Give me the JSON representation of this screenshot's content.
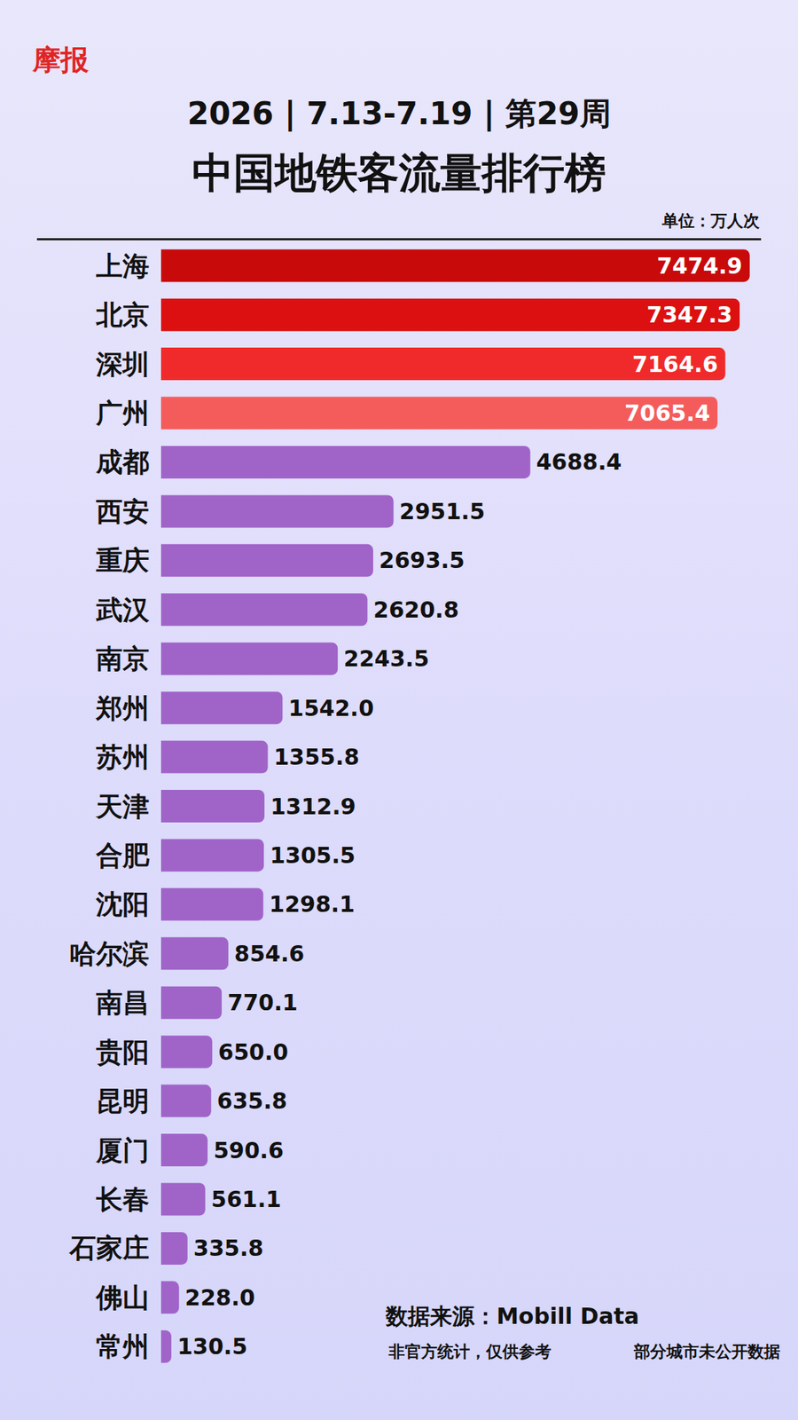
{
  "chart_data": {
    "type": "bar",
    "orientation": "horizontal",
    "brand": "摩报",
    "subtitle": "2026 | 7.13-7.19 | 第29周",
    "title": "中国地铁客流量排行榜",
    "unit": "单位：万人次",
    "categories": [
      "上海",
      "北京",
      "深圳",
      "广州",
      "成都",
      "西安",
      "重庆",
      "武汉",
      "南京",
      "郑州",
      "苏州",
      "天津",
      "合肥",
      "沈阳",
      "哈尔滨",
      "南昌",
      "贵阳",
      "昆明",
      "厦门",
      "长春",
      "石家庄",
      "佛山",
      "常州"
    ],
    "values": [
      7474.9,
      7347.3,
      7164.6,
      7065.4,
      4688.4,
      2951.5,
      2693.5,
      2620.8,
      2243.5,
      1542.0,
      1355.8,
      1312.9,
      1305.5,
      1298.1,
      854.6,
      770.1,
      650.0,
      635.8,
      590.6,
      561.1,
      335.8,
      228.0,
      130.5
    ],
    "value_labels": [
      "7474.9",
      "7347.3",
      "7164.6",
      "7065.4",
      "4688.4",
      "2951.5",
      "2693.5",
      "2620.8",
      "2243.5",
      "1542.0",
      "1355.8",
      "1312.9",
      "1305.5",
      "1298.1",
      "854.6",
      "770.1",
      "650.0",
      "635.8",
      "590.6",
      "561.1",
      "335.8",
      "228.0",
      "130.5"
    ],
    "colors": [
      "#c80a0a",
      "#dc1010",
      "#f02a2a",
      "#f45c5c",
      "#a064c8",
      "#a064c8",
      "#a064c8",
      "#a064c8",
      "#a064c8",
      "#a064c8",
      "#a064c8",
      "#a064c8",
      "#a064c8",
      "#a064c8",
      "#a064c8",
      "#a064c8",
      "#a064c8",
      "#a064c8",
      "#a064c8",
      "#a064c8",
      "#a064c8",
      "#a064c8",
      "#a064c8"
    ],
    "xlim": [
      0,
      7600
    ],
    "data_labels": true,
    "tick_labels": "y",
    "grid": false,
    "source": "数据来源：Mobill Data",
    "notes": [
      "非官方统计，仅供参考",
      "部分城市未公开数据"
    ]
  }
}
